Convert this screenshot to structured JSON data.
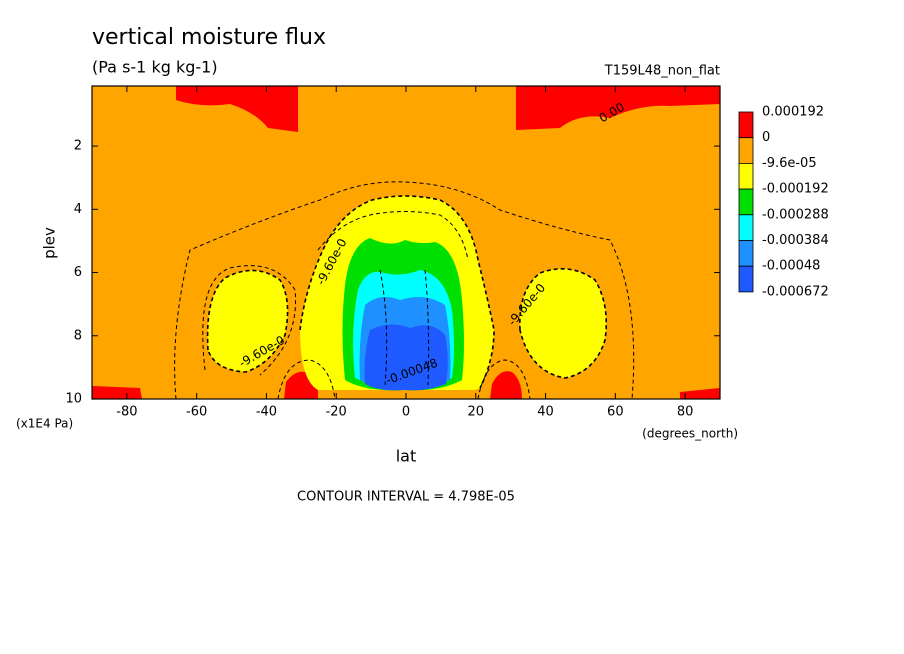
{
  "chart_data": {
    "type": "contour",
    "title": "vertical moisture flux",
    "subtitle": "(Pa s-1 kg kg-1)",
    "annotation": "T159L48_non_flat",
    "x_label": "lat",
    "x_units": "(degrees_north)",
    "y_label": "plev",
    "y_units": "(x1E4 Pa)",
    "footer": "CONTOUR INTERVAL = 4.798E-05",
    "xlim": [
      -90,
      90
    ],
    "xticks": [
      -80,
      -60,
      -40,
      -20,
      0,
      20,
      40,
      60,
      80
    ],
    "ylim": [
      10,
      0.1
    ],
    "yticks": [
      2,
      4,
      6,
      8,
      10
    ],
    "levels": [
      0.000192,
      0,
      {
        "value": -9.6e-05,
        "label": "-9.6e-05"
      },
      -0.000192,
      -0.000288,
      -0.000384,
      -0.00048,
      -0.000672
    ],
    "colors": [
      "#ff0000",
      "#ffa500",
      "#ffff00",
      "#00e000",
      "#00ffff",
      "#1e90ff",
      "#1e5aff"
    ],
    "contour_labels": [
      "0.00",
      "-9.60e-0",
      "-9.60e-0",
      "-9.60e-0",
      "-0.00048"
    ]
  }
}
